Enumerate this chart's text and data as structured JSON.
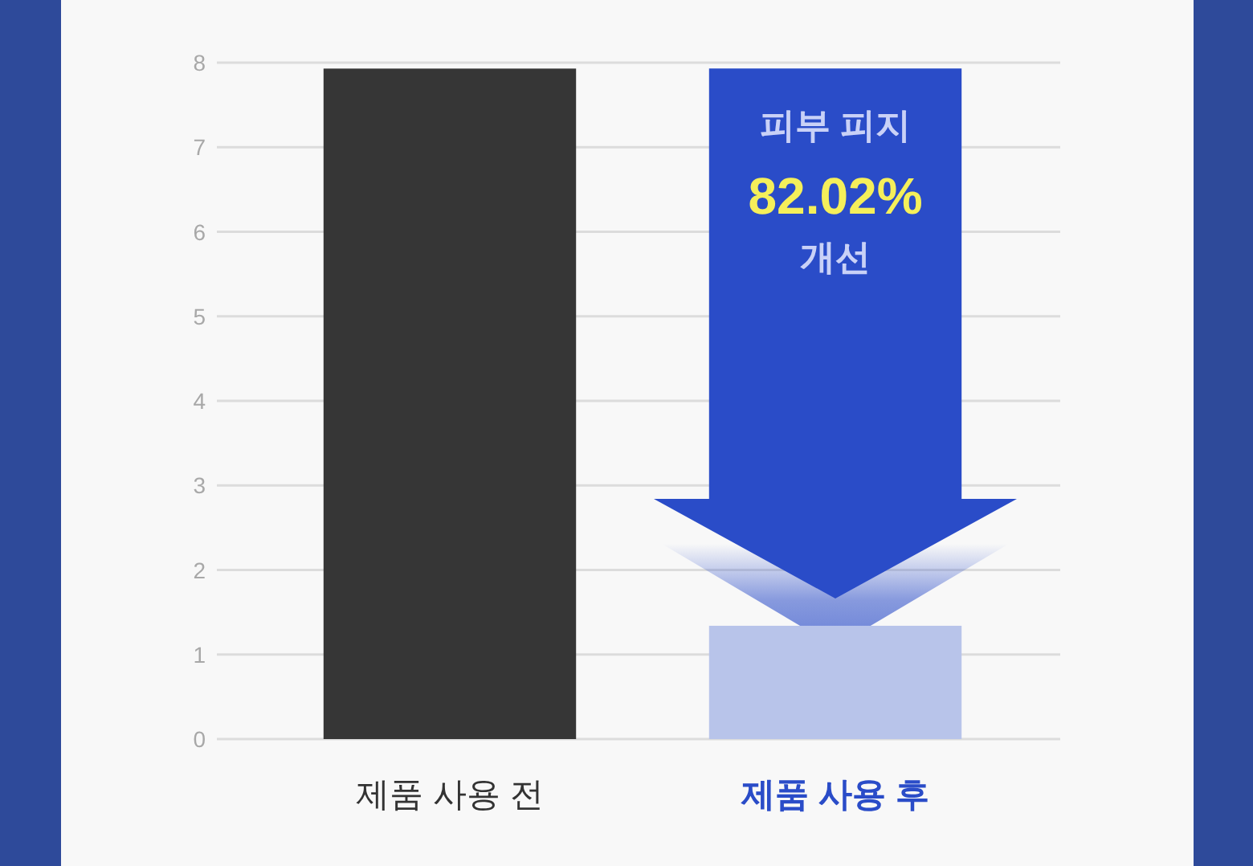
{
  "chart_data": {
    "type": "bar",
    "categories": [
      "제품 사용 전",
      "제품 사용 후"
    ],
    "values": [
      7.93,
      1.34
    ],
    "colors": [
      "#363636",
      "#b8c4ea"
    ],
    "ylim": [
      0,
      8
    ],
    "yticks": [
      0,
      1,
      2,
      3,
      4,
      5,
      6,
      7,
      8
    ],
    "grid": "y",
    "annotations": [
      "피부 피지\n82.02%\n개선"
    ]
  }
}
